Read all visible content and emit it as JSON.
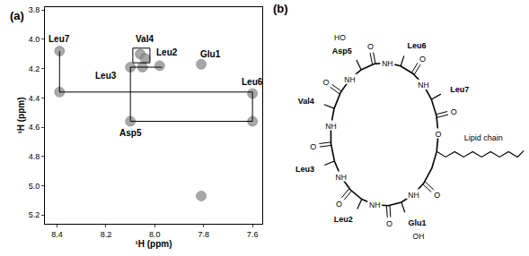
{
  "chart_data": {
    "type": "scatter",
    "panel_label": "(a)",
    "xlabel": "¹H (ppm)",
    "ylabel": "¹H (ppm)",
    "xlim": [
      7.56,
      8.45
    ],
    "ylim": [
      3.78,
      5.26
    ],
    "xticks": [
      8.4,
      8.2,
      {
        "value": 8,
        "label": "8.0"
      },
      7.8,
      7.6
    ],
    "yticks": [
      3.8,
      {
        "value": 4,
        "label": "4.0"
      },
      4.2,
      4.4,
      4.6,
      4.8,
      {
        "value": 5,
        "label": "5.0"
      },
      5.2
    ],
    "grid": false,
    "series": [
      {
        "type": "scatter",
        "marker": "circle",
        "color": "#8c8c8c",
        "x": [
          8.39,
          8.39,
          8.06,
          8.04,
          8.1,
          8.05,
          7.98,
          7.81,
          7.6,
          7.6,
          8.1,
          7.81
        ],
        "y": [
          4.08,
          4.36,
          4.1,
          4.13,
          4.19,
          4.19,
          4.18,
          4.17,
          4.37,
          4.56,
          4.56,
          5.07
        ]
      },
      {
        "type": "line",
        "line_style": "solid",
        "color": "#000000",
        "x": [
          8.39,
          8.39,
          7.6,
          7.6,
          8.1,
          8.1,
          7.97,
          null,
          8.09,
          8.02,
          8.02,
          8.09,
          8.09
        ],
        "y": [
          4.08,
          4.36,
          4.36,
          4.56,
          4.56,
          4.19,
          4.19,
          null,
          4.06,
          4.06,
          4.16,
          4.16,
          4.06
        ]
      }
    ],
    "annotations": [
      {
        "text": "Leu7",
        "x": 8.39,
        "y": 4.0
      },
      {
        "text": "Val4",
        "x": 8.04,
        "y": 4.0
      },
      {
        "text": "Leu2",
        "x": 7.95,
        "y": 4.09
      },
      {
        "text": "Glu1",
        "x": 7.77,
        "y": 4.1
      },
      {
        "text": "Leu3",
        "x": 8.2,
        "y": 4.25
      },
      {
        "text": "Asp5",
        "x": 8.1,
        "y": 4.64
      },
      {
        "text": "Leu6",
        "x": 7.6,
        "y": 4.29
      }
    ]
  },
  "structure": {
    "panel_label": "(b)",
    "residues": [
      "Glu1",
      "Leu2",
      "Leu3",
      "Val4",
      "Asp5",
      "Leu6",
      "Leu7"
    ],
    "lipid_label": "Lipid chain",
    "acid_labels": {
      "Asp5": "HO",
      "Glu1": "OH"
    },
    "atoms": {
      "carbonyl": "O",
      "amide": "NH",
      "ester": "O"
    }
  }
}
